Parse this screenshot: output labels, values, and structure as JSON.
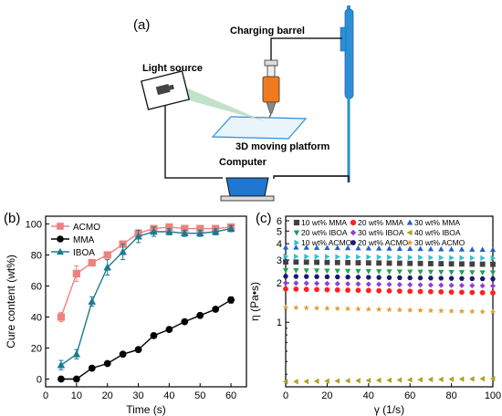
{
  "diagram": {
    "panel_label": "(a)",
    "labels": {
      "charging_barrel": "Charging barrel",
      "light_source": "Light source",
      "platform": "3D moving platform",
      "computer": "Computer"
    },
    "colors": {
      "barrel": "#2c8fd6",
      "syringe_fill": "#f07a1e",
      "screen": "#1f77d0",
      "beam": "#b7dcc0"
    }
  },
  "chart_data": [
    {
      "panel_label": "(b)",
      "type": "line",
      "xlabel": "Time (s)",
      "ylabel": "Cure content (wt%)",
      "xlim": [
        0,
        65
      ],
      "ylim": [
        -5,
        105
      ],
      "xticks": [
        "0",
        "10",
        "20",
        "30",
        "40",
        "50",
        "60"
      ],
      "yticks": [
        "0",
        "20",
        "40",
        "60",
        "80",
        "100"
      ],
      "grid": false,
      "legend_position": "top-left",
      "x": [
        5,
        10,
        15,
        20,
        25,
        30,
        35,
        40,
        45,
        50,
        55,
        60
      ],
      "series": [
        {
          "name": "ACMO",
          "color": "#f08080",
          "marker": "square",
          "values": [
            40,
            68,
            75,
            80,
            87,
            94,
            97,
            98,
            97,
            97,
            97,
            98
          ],
          "errors": [
            3,
            5,
            2,
            2,
            2,
            2,
            2,
            2,
            2,
            2,
            2,
            2
          ]
        },
        {
          "name": "MMA",
          "color": "#000000",
          "marker": "circle",
          "values": [
            0,
            0,
            7,
            10,
            16,
            19,
            28,
            32,
            37,
            41,
            45,
            51
          ],
          "errors": [
            0,
            0,
            0,
            0,
            0,
            0,
            0,
            0,
            0,
            0,
            0,
            2
          ]
        },
        {
          "name": "IBOA",
          "color": "#1c7a8f",
          "marker": "triangle",
          "values": [
            9,
            16,
            50,
            72,
            82,
            92,
            95,
            95,
            94,
            94,
            95,
            97
          ],
          "errors": [
            3,
            3,
            3,
            5,
            5,
            4,
            3,
            2,
            2,
            2,
            2,
            2
          ]
        }
      ]
    },
    {
      "panel_label": "(c)",
      "type": "scatter",
      "xlabel": "γ (1/s)",
      "ylabel": "η (Pa•s)",
      "yscale": "log",
      "xlim": [
        0,
        100
      ],
      "ylim": [
        0.32,
        6.5
      ],
      "xticks": [
        "0",
        "20",
        "40",
        "60",
        "80",
        "100"
      ],
      "yticks": [
        "1",
        "2",
        "3",
        "4",
        "5",
        "6"
      ],
      "grid": false,
      "legend_position": "top",
      "series": [
        {
          "name": "10 wt% MMA",
          "color": "#404040",
          "marker": "square",
          "start": 2.9,
          "end": 2.78
        },
        {
          "name": "20 wt% MMA",
          "color": "#ff2020",
          "marker": "circle",
          "start": 1.8,
          "end": 1.68
        },
        {
          "name": "30 wt% MMA",
          "color": "#2060d0",
          "marker": "triangle-up",
          "start": 3.75,
          "end": 3.6
        },
        {
          "name": "20 wt% IBOA",
          "color": "#20a050",
          "marker": "triangle-down",
          "start": 2.5,
          "end": 2.4
        },
        {
          "name": "30 wt% IBOA",
          "color": "#9040d0",
          "marker": "diamond",
          "start": 2.0,
          "end": 1.9
        },
        {
          "name": "40 wt% IBOA",
          "color": "#b0a020",
          "marker": "triangle-left",
          "start": 0.35,
          "end": 0.37
        },
        {
          "name": "10 wt% ACMO",
          "color": "#30c0d0",
          "marker": "triangle-right",
          "start": 3.2,
          "end": 3.1
        },
        {
          "name": "20 wt% ACMO",
          "color": "#1a1a70",
          "marker": "hexagon",
          "start": 2.25,
          "end": 2.15
        },
        {
          "name": "30 wt% ACMO",
          "color": "#e0a030",
          "marker": "star",
          "start": 1.3,
          "end": 1.2
        }
      ]
    }
  ]
}
